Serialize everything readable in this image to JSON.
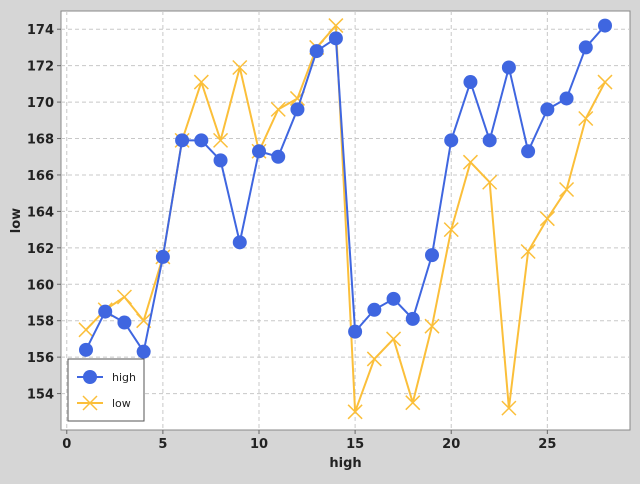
{
  "chart_data": {
    "type": "line",
    "title": "",
    "xlabel": "high",
    "ylabel": "low",
    "xlim": [
      -0.3,
      29.3
    ],
    "ylim": [
      152.0,
      175.0
    ],
    "x_ticks": [
      0,
      5,
      10,
      15,
      20,
      25
    ],
    "y_ticks": [
      154,
      156,
      158,
      160,
      162,
      164,
      166,
      168,
      170,
      172,
      174
    ],
    "grid": true,
    "legend_position": "bottom-left",
    "x": [
      1,
      2,
      3,
      4,
      5,
      6,
      7,
      8,
      9,
      10,
      11,
      12,
      13,
      14,
      15,
      16,
      17,
      18,
      19,
      20,
      21,
      22,
      23,
      24,
      25,
      26,
      27,
      28
    ],
    "series": [
      {
        "name": "high",
        "color": "#3f66e0",
        "marker": "circle",
        "values": [
          156.4,
          158.5,
          157.9,
          156.3,
          161.5,
          167.9,
          167.9,
          166.8,
          162.3,
          167.3,
          167.0,
          169.6,
          172.8,
          173.5,
          157.4,
          158.6,
          159.2,
          158.1,
          161.6,
          167.9,
          171.1,
          167.9,
          171.9,
          167.3,
          169.6,
          170.2,
          173.0,
          174.2
        ]
      },
      {
        "name": "low",
        "color": "#fbbf3a",
        "marker": "x",
        "values": [
          157.5,
          158.6,
          159.3,
          158.0,
          161.5,
          167.9,
          171.1,
          167.9,
          171.9,
          167.3,
          169.6,
          170.2,
          173.0,
          174.2,
          153.0,
          155.9,
          157.0,
          153.5,
          157.7,
          163.0,
          166.7,
          165.6,
          153.2,
          161.8,
          163.6,
          165.2,
          169.1,
          171.1
        ]
      }
    ]
  }
}
